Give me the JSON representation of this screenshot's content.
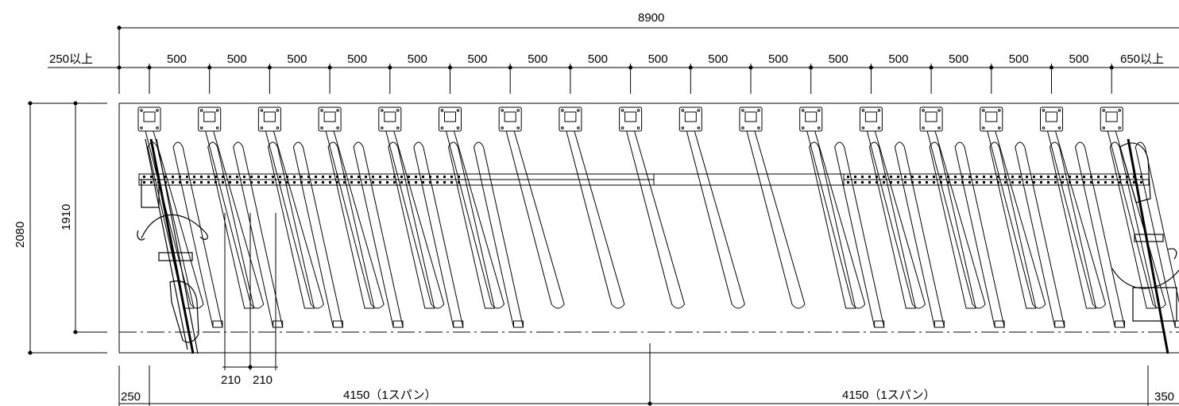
{
  "drawing": {
    "total_width_label": "8900",
    "left_clearance_label": "250以上",
    "right_clearance_label": "650以上",
    "pitch_labels": [
      "500",
      "500",
      "500",
      "500",
      "500",
      "500",
      "500",
      "500",
      "500",
      "500",
      "500",
      "500",
      "500",
      "500",
      "500",
      "500"
    ],
    "height_outer_label": "2080",
    "height_inner_label": "1910",
    "stagger_labels": [
      "210",
      "210"
    ],
    "bottom_left_offset_label": "250",
    "span_labels": [
      "4150（1スパン）",
      "4150（1スパン）"
    ],
    "bottom_right_offset_label": "350"
  }
}
